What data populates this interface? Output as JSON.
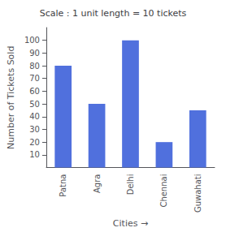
{
  "chart_data": {
    "type": "bar",
    "title": "Scale : 1 unit length = 10 tickets",
    "categories": [
      "Patna",
      "Agra",
      "Delhi",
      "Chennai",
      "Guwahati"
    ],
    "values": [
      80,
      50,
      100,
      20,
      45
    ],
    "xlabel": "Cities →",
    "ylabel": "Number of Tickets Sold",
    "ylim": [
      0,
      110
    ],
    "yticks": [
      10,
      20,
      30,
      40,
      50,
      60,
      70,
      80,
      90,
      100
    ],
    "grid": false
  }
}
